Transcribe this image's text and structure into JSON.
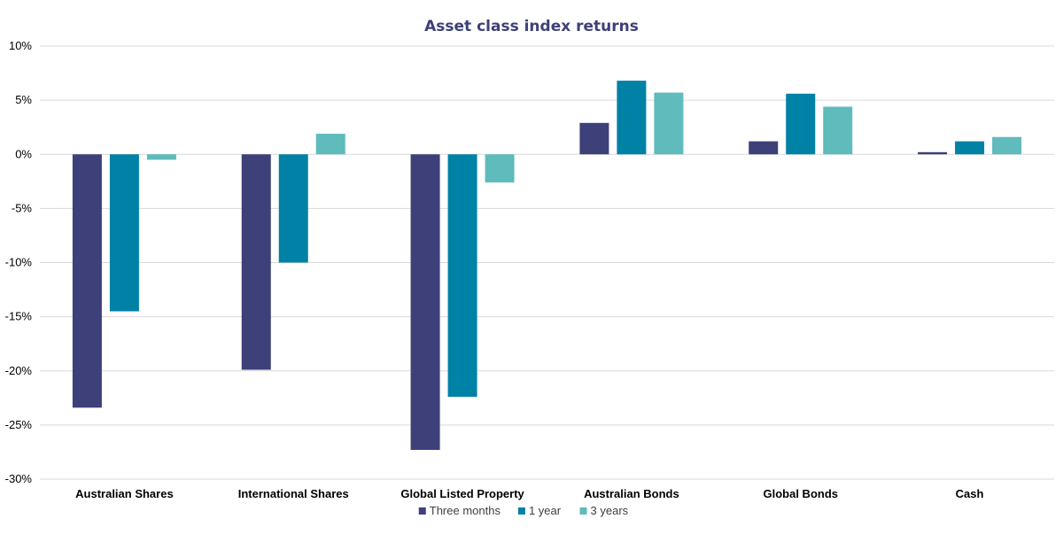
{
  "chart_data": {
    "type": "bar",
    "title": "Asset class index returns",
    "categories": [
      "Australian Shares",
      "International Shares",
      "Global Listed Property",
      "Australian Bonds",
      "Global Bonds",
      "Cash"
    ],
    "series": [
      {
        "name": "Three months",
        "color": "#3d4079",
        "values": [
          -23.4,
          -19.9,
          -27.3,
          2.9,
          1.2,
          0.2
        ]
      },
      {
        "name": "1 year",
        "color": "#0081a6",
        "values": [
          -14.5,
          -10.0,
          -22.4,
          6.8,
          5.6,
          1.2
        ]
      },
      {
        "name": "3 years",
        "color": "#5fbbbc",
        "values": [
          -0.5,
          1.9,
          -2.6,
          5.7,
          4.4,
          1.6
        ]
      }
    ],
    "ylim": [
      -30,
      10
    ],
    "yticks": [
      "10%",
      "5%",
      "0%",
      "-5%",
      "-10%",
      "-15%",
      "-20%",
      "-25%",
      "-30%"
    ],
    "ytick_values": [
      10,
      5,
      0,
      -5,
      -10,
      -15,
      -20,
      -25,
      -30
    ],
    "grid": true,
    "legend_position": "bottom"
  }
}
